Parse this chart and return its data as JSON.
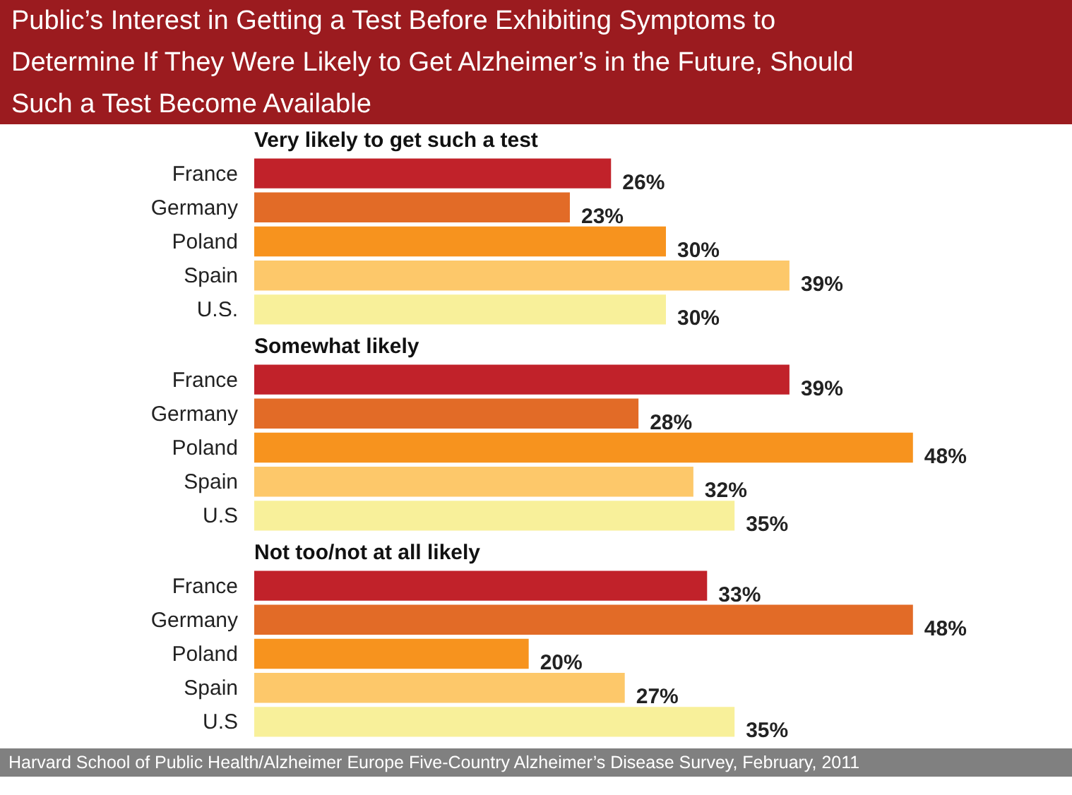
{
  "chart_data": [
    {
      "type": "bar",
      "orientation": "horizontal",
      "title": "Public’s Interest in Getting a Test Before Exhibiting Symptoms to Determine If They Were Likely to Get Alzheimer’s in the Future, Should Such a Test Become Available",
      "subtitle": "Very likely to get such a test",
      "categories": [
        "France",
        "Germany",
        "Poland",
        "Spain",
        "U.S."
      ],
      "values": [
        26,
        23,
        30,
        39,
        30
      ],
      "value_labels": [
        "26%",
        "23%",
        "30%",
        "39%",
        "30%"
      ],
      "colors": [
        "#c1222a",
        "#e26b27",
        "#f7931e",
        "#fdc86a",
        "#f8f09a"
      ]
    },
    {
      "type": "bar",
      "orientation": "horizontal",
      "subtitle": "Somewhat likely",
      "categories": [
        "France",
        "Germany",
        "Poland",
        "Spain",
        "U.S"
      ],
      "values": [
        39,
        28,
        48,
        32,
        35
      ],
      "value_labels": [
        "39%",
        "28%",
        "48%",
        "32%",
        "35%"
      ],
      "colors": [
        "#c1222a",
        "#e26b27",
        "#f7931e",
        "#fdc86a",
        "#f8f09a"
      ]
    },
    {
      "type": "bar",
      "orientation": "horizontal",
      "subtitle": "Not too/not at all likely",
      "categories": [
        "France",
        "Germany",
        "Poland",
        "Spain",
        "U.S"
      ],
      "values": [
        33,
        48,
        20,
        27,
        35
      ],
      "value_labels": [
        "33%",
        "48%",
        "20%",
        "27%",
        "35%"
      ],
      "colors": [
        "#c1222a",
        "#e26b27",
        "#f7931e",
        "#fdc86a",
        "#f8f09a"
      ],
      "annotations": [
        "Harvard School of Public Health/Alzheimer Europe Five-Country Alzheimer’s Disease Survey, February, 2011"
      ]
    }
  ]
}
